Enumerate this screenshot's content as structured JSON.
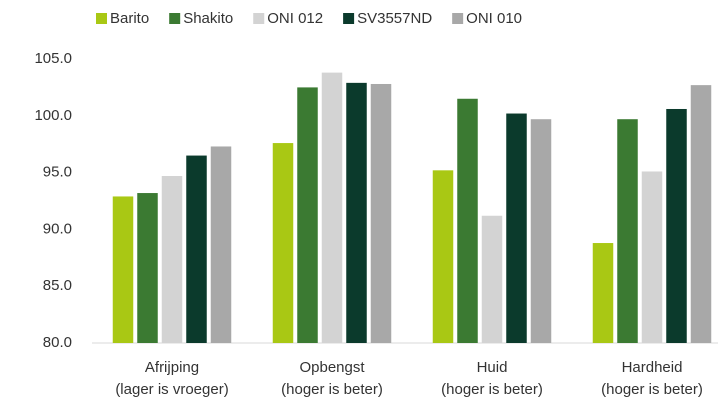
{
  "chart_data": {
    "type": "bar",
    "categories": [
      [
        "Afrijping",
        "(lager is vroeger)"
      ],
      [
        "Opbengst",
        "(hoger is beter)"
      ],
      [
        "Huid",
        "(hoger is beter)"
      ],
      [
        "Hardheid",
        "(hoger is beter)"
      ]
    ],
    "series": [
      {
        "name": "Barito",
        "color": "#a9c814",
        "values": [
          92.9,
          97.6,
          95.2,
          88.8
        ]
      },
      {
        "name": "Shakito",
        "color": "#3b7a32",
        "values": [
          93.2,
          102.5,
          101.5,
          99.7
        ]
      },
      {
        "name": "ONI 012",
        "color": "#d3d3d3",
        "values": [
          94.7,
          103.8,
          91.2,
          95.1
        ]
      },
      {
        "name": "SV3557ND",
        "color": "#0b3a2c",
        "values": [
          96.5,
          102.9,
          100.2,
          100.6
        ]
      },
      {
        "name": "ONI 010",
        "color": "#a8a8a8",
        "values": [
          97.3,
          102.8,
          99.7,
          102.7
        ]
      }
    ],
    "ylim": [
      80,
      105
    ],
    "yticks": [
      {
        "value": 80,
        "label": "80.0"
      },
      {
        "value": 85,
        "label": "85.0"
      },
      {
        "value": 90,
        "label": "90.0"
      },
      {
        "value": 95,
        "label": "95.0"
      },
      {
        "value": 100,
        "label": "100.0"
      },
      {
        "value": 105,
        "label": "105.0"
      }
    ],
    "grid": false,
    "legend": "top"
  }
}
